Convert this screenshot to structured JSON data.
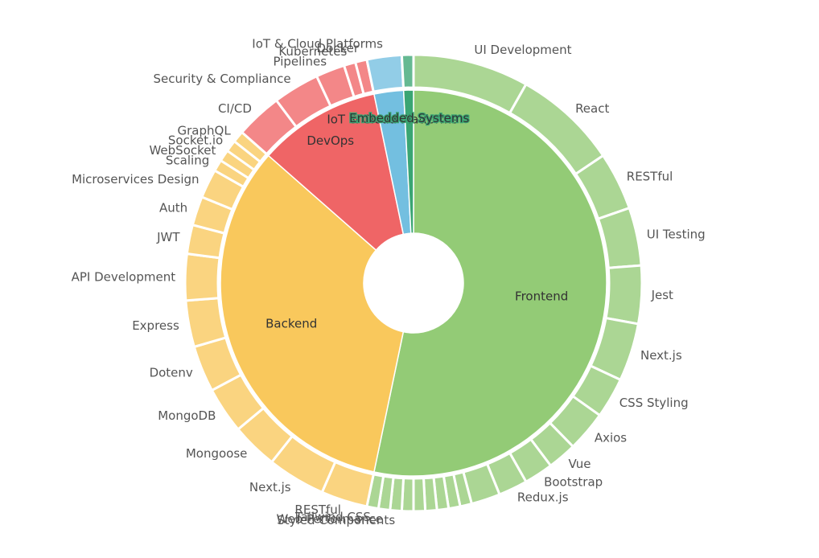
{
  "chart_data": {
    "type": "sunburst",
    "categories": [
      {
        "name": "Frontend",
        "color": "#93cb76",
        "children": [
          {
            "name": "UI Development",
            "value": 10
          },
          {
            "name": "React",
            "value": 9
          },
          {
            "name": "RESTful",
            "value": 5
          },
          {
            "name": "UI Testing",
            "value": 5
          },
          {
            "name": "Jest",
            "value": 5
          },
          {
            "name": "Next.js",
            "value": 5
          },
          {
            "name": "CSS Styling",
            "value": 3.5
          },
          {
            "name": "Axios",
            "value": 3.5
          },
          {
            "name": "Vue",
            "value": 2.5
          },
          {
            "name": "Bootstrap",
            "value": 2.5
          },
          {
            "name": "Redux.js",
            "value": 2.5
          },
          {
            "name": "",
            "value": 2.5
          },
          {
            "name": "",
            "value": 1
          },
          {
            "name": "",
            "value": 1
          },
          {
            "name": "",
            "value": 1
          },
          {
            "name": "",
            "value": 1
          },
          {
            "name": "",
            "value": 1
          },
          {
            "name": "",
            "value": 1
          },
          {
            "name": "Styled Components",
            "value": 1
          },
          {
            "name": "Web Performance",
            "value": 1
          },
          {
            "name": "Tailwind CSS",
            "value": 1
          }
        ]
      },
      {
        "name": "Backend",
        "color": "#f9c85c",
        "children": [
          {
            "name": "RESTful",
            "value": 4
          },
          {
            "name": "Next.js",
            "value": 5
          },
          {
            "name": "Mongoose",
            "value": 4
          },
          {
            "name": "MongoDB",
            "value": 4
          },
          {
            "name": "Dotenv",
            "value": 4
          },
          {
            "name": "Express",
            "value": 4
          },
          {
            "name": "API Development",
            "value": 4
          },
          {
            "name": "JWT",
            "value": 2.5
          },
          {
            "name": "Auth",
            "value": 2.5
          },
          {
            "name": "Microservices Design",
            "value": 2.5
          },
          {
            "name": "Scaling",
            "value": 1
          },
          {
            "name": "WebSocket",
            "value": 1
          },
          {
            "name": "Socket.io",
            "value": 1
          },
          {
            "name": "GraphQL",
            "value": 1
          }
        ]
      },
      {
        "name": "DevOps",
        "color": "#ef6566",
        "children": [
          {
            "name": "CI/CD",
            "value": 4
          },
          {
            "name": "Security & Compliance",
            "value": 4
          },
          {
            "name": "Pipelines",
            "value": 2.5
          },
          {
            "name": "Kubernetes",
            "value": 1
          },
          {
            "name": "Docker",
            "value": 1
          }
        ]
      },
      {
        "name": "IoT & Cloud Platforms",
        "color": "#73bfe0",
        "children": [
          {
            "name": "IoT & Cloud Platforms",
            "value": 3
          }
        ]
      },
      {
        "name": "Embedded Systems",
        "color": "#3aa573",
        "children": [
          {
            "name": "",
            "value": 1
          }
        ]
      }
    ]
  }
}
